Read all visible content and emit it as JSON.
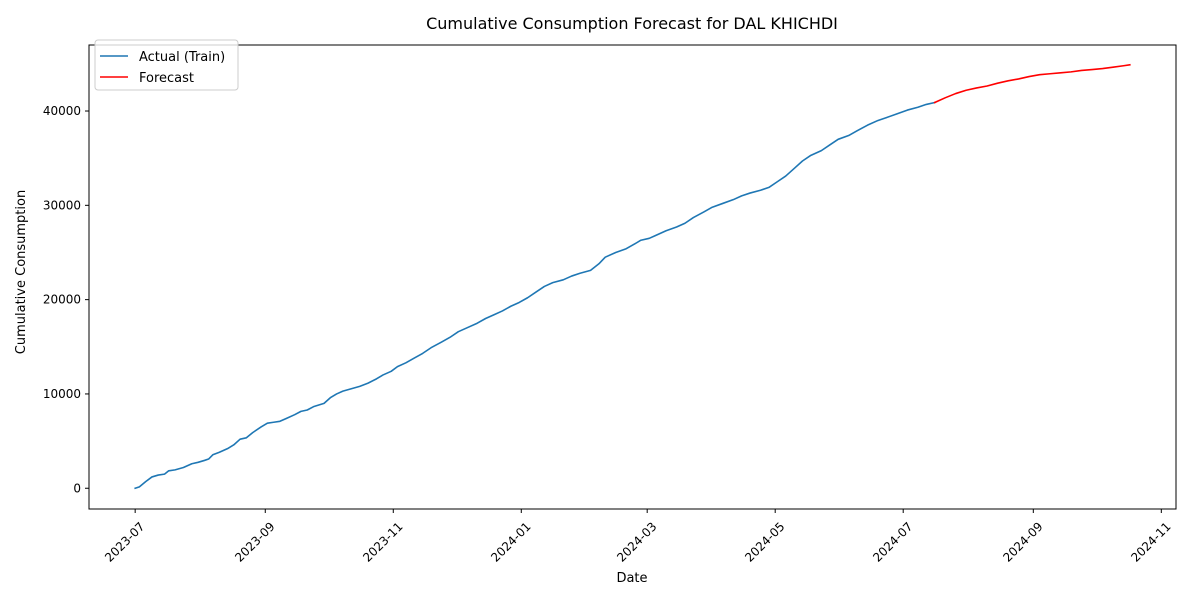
{
  "chart_data": {
    "type": "line",
    "title": "Cumulative Consumption Forecast for DAL KHICHDI",
    "xlabel": "Date",
    "ylabel": "Cumulative Consumption",
    "legend_position": "top-left",
    "grid": false,
    "xlim": [
      "2023-06-09",
      "2024-11-08"
    ],
    "ylim": [
      -2200,
      47000
    ],
    "x_ticks": [
      "2023-07-01",
      "2023-09-01",
      "2023-11-01",
      "2024-01-01",
      "2024-03-01",
      "2024-05-01",
      "2024-07-01",
      "2024-09-01",
      "2024-11-01"
    ],
    "x_tick_labels": [
      "2023-07",
      "2023-09",
      "2023-11",
      "2024-01",
      "2024-03",
      "2024-05",
      "2024-07",
      "2024-09",
      "2024-11"
    ],
    "y_ticks": [
      0,
      10000,
      20000,
      30000,
      40000
    ],
    "y_tick_labels": [
      "0",
      "10000",
      "20000",
      "30000",
      "40000"
    ],
    "series": [
      {
        "name": "Actual (Train)",
        "color": "#1f77b4",
        "points": [
          [
            "2023-07-01",
            0
          ],
          [
            "2023-07-03",
            150
          ],
          [
            "2023-07-06",
            700
          ],
          [
            "2023-07-09",
            1200
          ],
          [
            "2023-07-12",
            1400
          ],
          [
            "2023-07-15",
            1500
          ],
          [
            "2023-07-17",
            1850
          ],
          [
            "2023-07-20",
            1950
          ],
          [
            "2023-07-24",
            2200
          ],
          [
            "2023-07-28",
            2600
          ],
          [
            "2023-07-31",
            2750
          ],
          [
            "2023-08-03",
            2950
          ],
          [
            "2023-08-05",
            3100
          ],
          [
            "2023-08-07",
            3550
          ],
          [
            "2023-08-10",
            3800
          ],
          [
            "2023-08-14",
            4200
          ],
          [
            "2023-08-17",
            4600
          ],
          [
            "2023-08-20",
            5200
          ],
          [
            "2023-08-23",
            5350
          ],
          [
            "2023-08-26",
            5900
          ],
          [
            "2023-08-30",
            6500
          ],
          [
            "2023-09-02",
            6900
          ],
          [
            "2023-09-05",
            7000
          ],
          [
            "2023-09-08",
            7100
          ],
          [
            "2023-09-11",
            7400
          ],
          [
            "2023-09-15",
            7800
          ],
          [
            "2023-09-18",
            8150
          ],
          [
            "2023-09-21",
            8300
          ],
          [
            "2023-09-24",
            8650
          ],
          [
            "2023-09-29",
            9000
          ],
          [
            "2023-10-02",
            9600
          ],
          [
            "2023-10-05",
            10000
          ],
          [
            "2023-10-08",
            10300
          ],
          [
            "2023-10-12",
            10550
          ],
          [
            "2023-10-16",
            10800
          ],
          [
            "2023-10-20",
            11150
          ],
          [
            "2023-10-24",
            11600
          ],
          [
            "2023-10-27",
            12000
          ],
          [
            "2023-10-31",
            12400
          ],
          [
            "2023-11-03",
            12900
          ],
          [
            "2023-11-07",
            13300
          ],
          [
            "2023-11-11",
            13800
          ],
          [
            "2023-11-15",
            14300
          ],
          [
            "2023-11-19",
            14900
          ],
          [
            "2023-11-24",
            15500
          ],
          [
            "2023-11-28",
            16000
          ],
          [
            "2023-12-02",
            16600
          ],
          [
            "2023-12-06",
            17000
          ],
          [
            "2023-12-11",
            17500
          ],
          [
            "2023-12-15",
            18000
          ],
          [
            "2023-12-19",
            18400
          ],
          [
            "2023-12-23",
            18800
          ],
          [
            "2023-12-27",
            19300
          ],
          [
            "2023-12-31",
            19700
          ],
          [
            "2024-01-04",
            20200
          ],
          [
            "2024-01-08",
            20800
          ],
          [
            "2024-01-12",
            21400
          ],
          [
            "2024-01-16",
            21800
          ],
          [
            "2024-01-21",
            22100
          ],
          [
            "2024-01-25",
            22500
          ],
          [
            "2024-01-29",
            22800
          ],
          [
            "2024-02-03",
            23100
          ],
          [
            "2024-02-07",
            23800
          ],
          [
            "2024-02-10",
            24500
          ],
          [
            "2024-02-15",
            25000
          ],
          [
            "2024-02-20",
            25400
          ],
          [
            "2024-02-24",
            25900
          ],
          [
            "2024-02-27",
            26300
          ],
          [
            "2024-03-02",
            26500
          ],
          [
            "2024-03-05",
            26800
          ],
          [
            "2024-03-10",
            27300
          ],
          [
            "2024-03-15",
            27700
          ],
          [
            "2024-03-19",
            28100
          ],
          [
            "2024-03-23",
            28700
          ],
          [
            "2024-03-28",
            29300
          ],
          [
            "2024-04-01",
            29800
          ],
          [
            "2024-04-06",
            30200
          ],
          [
            "2024-04-11",
            30600
          ],
          [
            "2024-04-15",
            31000
          ],
          [
            "2024-04-19",
            31300
          ],
          [
            "2024-04-24",
            31600
          ],
          [
            "2024-04-28",
            31900
          ],
          [
            "2024-05-02",
            32500
          ],
          [
            "2024-05-06",
            33100
          ],
          [
            "2024-05-10",
            33900
          ],
          [
            "2024-05-14",
            34700
          ],
          [
            "2024-05-18",
            35300
          ],
          [
            "2024-05-23",
            35800
          ],
          [
            "2024-05-27",
            36400
          ],
          [
            "2024-05-31",
            37000
          ],
          [
            "2024-06-05",
            37400
          ],
          [
            "2024-06-09",
            37900
          ],
          [
            "2024-06-14",
            38500
          ],
          [
            "2024-06-19",
            39000
          ],
          [
            "2024-06-23",
            39300
          ],
          [
            "2024-06-28",
            39700
          ],
          [
            "2024-07-03",
            40100
          ],
          [
            "2024-07-08",
            40400
          ],
          [
            "2024-07-12",
            40700
          ],
          [
            "2024-07-16",
            40900
          ]
        ]
      },
      {
        "name": "Forecast",
        "color": "#ff0000",
        "points": [
          [
            "2024-07-16",
            40900
          ],
          [
            "2024-07-21",
            41400
          ],
          [
            "2024-07-26",
            41850
          ],
          [
            "2024-07-31",
            42200
          ],
          [
            "2024-08-05",
            42450
          ],
          [
            "2024-08-10",
            42650
          ],
          [
            "2024-08-15",
            42950
          ],
          [
            "2024-08-20",
            43200
          ],
          [
            "2024-08-25",
            43400
          ],
          [
            "2024-08-30",
            43650
          ],
          [
            "2024-09-04",
            43850
          ],
          [
            "2024-09-09",
            43950
          ],
          [
            "2024-09-14",
            44050
          ],
          [
            "2024-09-19",
            44150
          ],
          [
            "2024-09-24",
            44300
          ],
          [
            "2024-09-29",
            44400
          ],
          [
            "2024-10-04",
            44500
          ],
          [
            "2024-10-09",
            44650
          ],
          [
            "2024-10-14",
            44800
          ],
          [
            "2024-10-17",
            44900
          ]
        ]
      }
    ]
  }
}
